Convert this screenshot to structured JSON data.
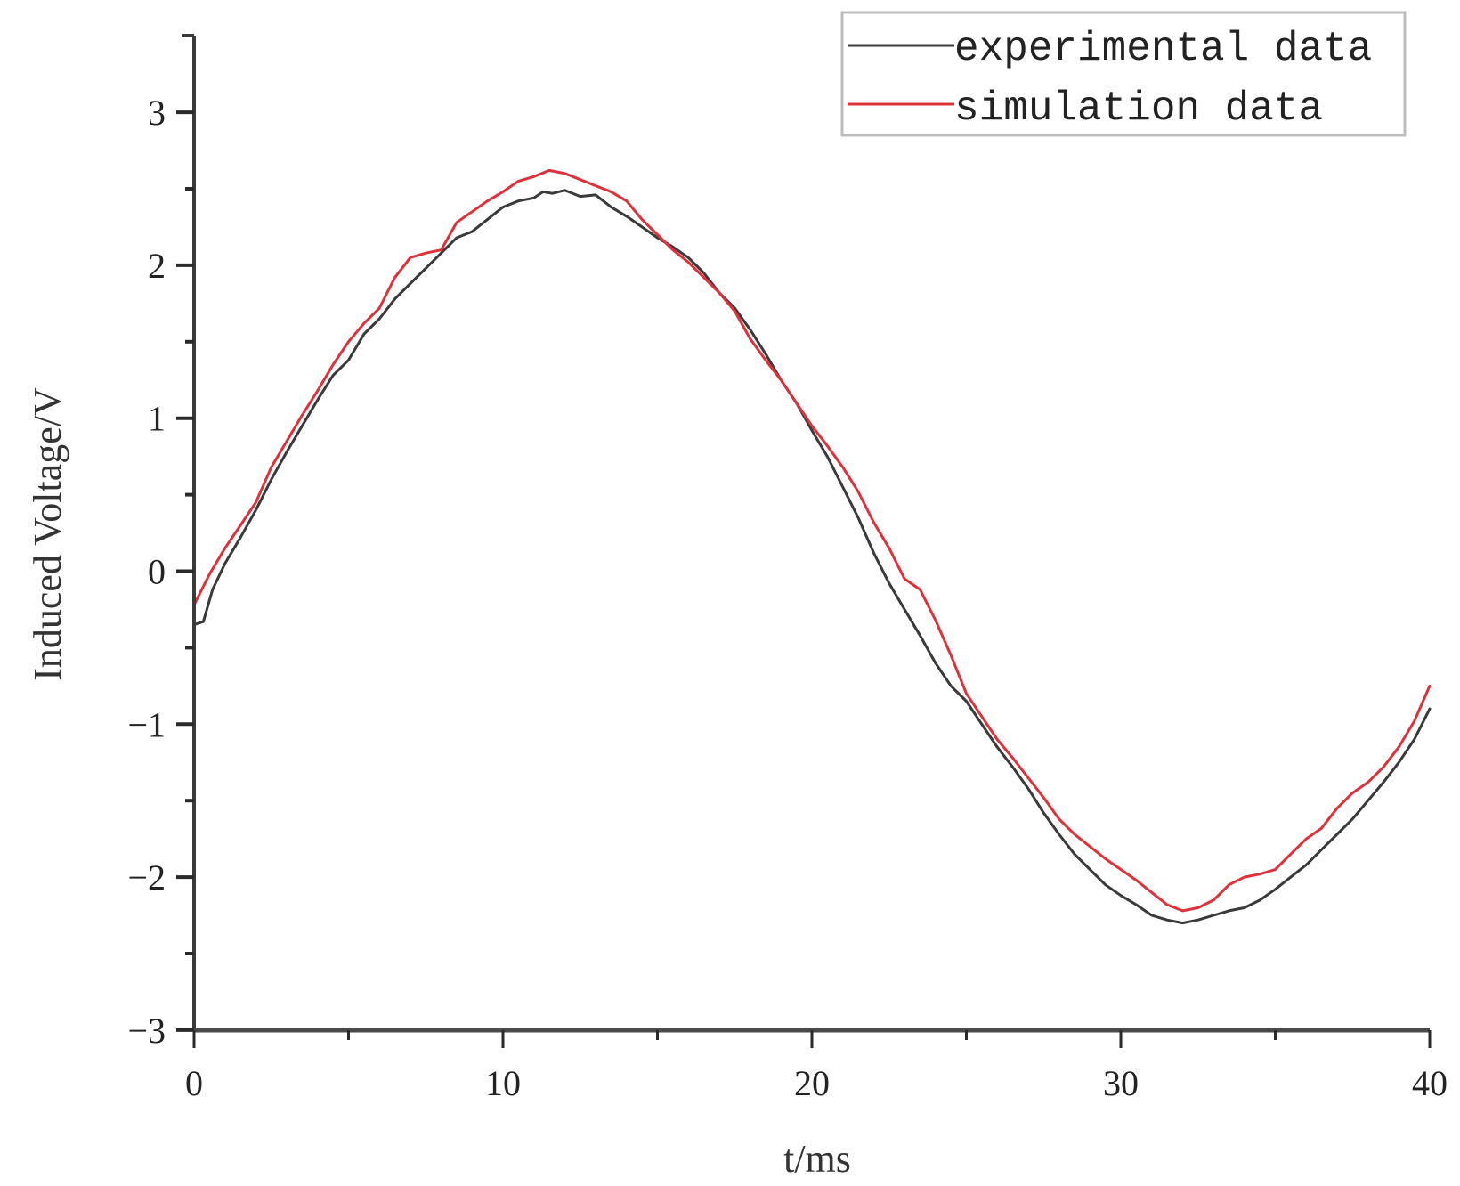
{
  "chart_data": {
    "type": "line",
    "title": "",
    "xlabel": "t/ms",
    "ylabel": "Induced Voltage/V",
    "xlim": [
      0,
      40
    ],
    "ylim": [
      -3,
      3.5
    ],
    "x_ticks": [
      0,
      10,
      20,
      30,
      40
    ],
    "x_tick_labels": [
      "0",
      "10",
      "20",
      "30",
      "40"
    ],
    "x_minor_ticks": [
      5,
      15,
      25,
      35
    ],
    "y_ticks": [
      -3,
      -2,
      -1,
      0,
      1,
      2,
      3
    ],
    "y_tick_labels": [
      "−3",
      "−2",
      "−1",
      "0",
      "1",
      "2",
      "3"
    ],
    "y_minor_ticks": [
      -2.5,
      -1.5,
      -0.5,
      0.5,
      1.5,
      2.5
    ],
    "grid": false,
    "legend_position": "upper right",
    "series": [
      {
        "name": "experimental data",
        "color": "#3a3a3a",
        "x": [
          0,
          0.3,
          0.6,
          1,
          1.5,
          2,
          2.5,
          3,
          3.5,
          4,
          4.5,
          5,
          5.5,
          6,
          6.5,
          7,
          7.5,
          8,
          8.5,
          9,
          9.5,
          10,
          10.5,
          11,
          11.3,
          11.6,
          12,
          12.5,
          13,
          13.5,
          14,
          14.5,
          15,
          15.5,
          16,
          16.5,
          17,
          17.5,
          18,
          18.5,
          19,
          19.5,
          20,
          20.5,
          21,
          21.5,
          22,
          22.5,
          23,
          23.5,
          24,
          24.5,
          25,
          25.5,
          26,
          26.5,
          27,
          27.5,
          28,
          28.5,
          29,
          29.5,
          30,
          30.5,
          31,
          31.5,
          32,
          32.5,
          33,
          33.5,
          34,
          34.5,
          35,
          35.5,
          36,
          36.5,
          37,
          37.5,
          38,
          38.5,
          39,
          39.5,
          40
        ],
        "y": [
          -0.35,
          -0.33,
          -0.12,
          0.05,
          0.22,
          0.4,
          0.6,
          0.78,
          0.95,
          1.12,
          1.28,
          1.38,
          1.55,
          1.65,
          1.78,
          1.88,
          1.98,
          2.08,
          2.18,
          2.22,
          2.3,
          2.38,
          2.42,
          2.44,
          2.48,
          2.47,
          2.49,
          2.45,
          2.46,
          2.38,
          2.32,
          2.25,
          2.18,
          2.12,
          2.05,
          1.95,
          1.82,
          1.72,
          1.58,
          1.42,
          1.25,
          1.1,
          0.92,
          0.75,
          0.55,
          0.35,
          0.12,
          -0.08,
          -0.25,
          -0.42,
          -0.6,
          -0.75,
          -0.85,
          -1.0,
          -1.15,
          -1.28,
          -1.42,
          -1.58,
          -1.72,
          -1.85,
          -1.95,
          -2.05,
          -2.12,
          -2.18,
          -2.25,
          -2.28,
          -2.3,
          -2.28,
          -2.25,
          -2.22,
          -2.2,
          -2.15,
          -2.08,
          -2.0,
          -1.92,
          -1.82,
          -1.72,
          -1.62,
          -1.5,
          -1.38,
          -1.25,
          -1.1,
          -0.9
        ]
      },
      {
        "name": "simulation data",
        "color": "#e0303a",
        "x": [
          0,
          0.5,
          1,
          1.5,
          2,
          2.5,
          3,
          3.5,
          4,
          4.5,
          5,
          5.5,
          6,
          6.5,
          7,
          7.5,
          8,
          8.5,
          9,
          9.5,
          10,
          10.5,
          11,
          11.5,
          12,
          12.5,
          13,
          13.5,
          14,
          14.5,
          15,
          15.5,
          16,
          16.5,
          17,
          17.5,
          18,
          18.5,
          19,
          19.5,
          20,
          20.5,
          21,
          21.5,
          22,
          22.5,
          23,
          23.5,
          24,
          24.5,
          25,
          25.5,
          26,
          26.5,
          27,
          27.5,
          28,
          28.5,
          29,
          29.5,
          30,
          30.5,
          31,
          31.5,
          32,
          32.5,
          33,
          33.5,
          34,
          34.5,
          35,
          35.5,
          36,
          36.5,
          37,
          37.5,
          38,
          38.5,
          39,
          39.5,
          40
        ],
        "y": [
          -0.22,
          -0.02,
          0.15,
          0.3,
          0.45,
          0.68,
          0.85,
          1.02,
          1.18,
          1.35,
          1.5,
          1.62,
          1.72,
          1.92,
          2.05,
          2.08,
          2.1,
          2.28,
          2.35,
          2.42,
          2.48,
          2.55,
          2.58,
          2.62,
          2.6,
          2.56,
          2.52,
          2.48,
          2.42,
          2.3,
          2.2,
          2.1,
          2.02,
          1.92,
          1.82,
          1.7,
          1.52,
          1.38,
          1.25,
          1.1,
          0.95,
          0.82,
          0.68,
          0.52,
          0.32,
          0.15,
          -0.05,
          -0.12,
          -0.32,
          -0.55,
          -0.8,
          -0.95,
          -1.1,
          -1.22,
          -1.35,
          -1.48,
          -1.62,
          -1.72,
          -1.8,
          -1.88,
          -1.95,
          -2.02,
          -2.1,
          -2.18,
          -2.22,
          -2.2,
          -2.15,
          -2.05,
          -2.0,
          -1.98,
          -1.95,
          -1.85,
          -1.75,
          -1.68,
          -1.55,
          -1.45,
          -1.38,
          -1.28,
          -1.15,
          -0.98,
          -0.75
        ]
      }
    ]
  },
  "legend": {
    "items": [
      {
        "label": "experimental data",
        "color": "#3a3a3a"
      },
      {
        "label": "simulation data",
        "color": "#e0303a"
      }
    ]
  },
  "axes": {
    "xlabel": "t/ms",
    "ylabel": "Induced Voltage/V"
  }
}
